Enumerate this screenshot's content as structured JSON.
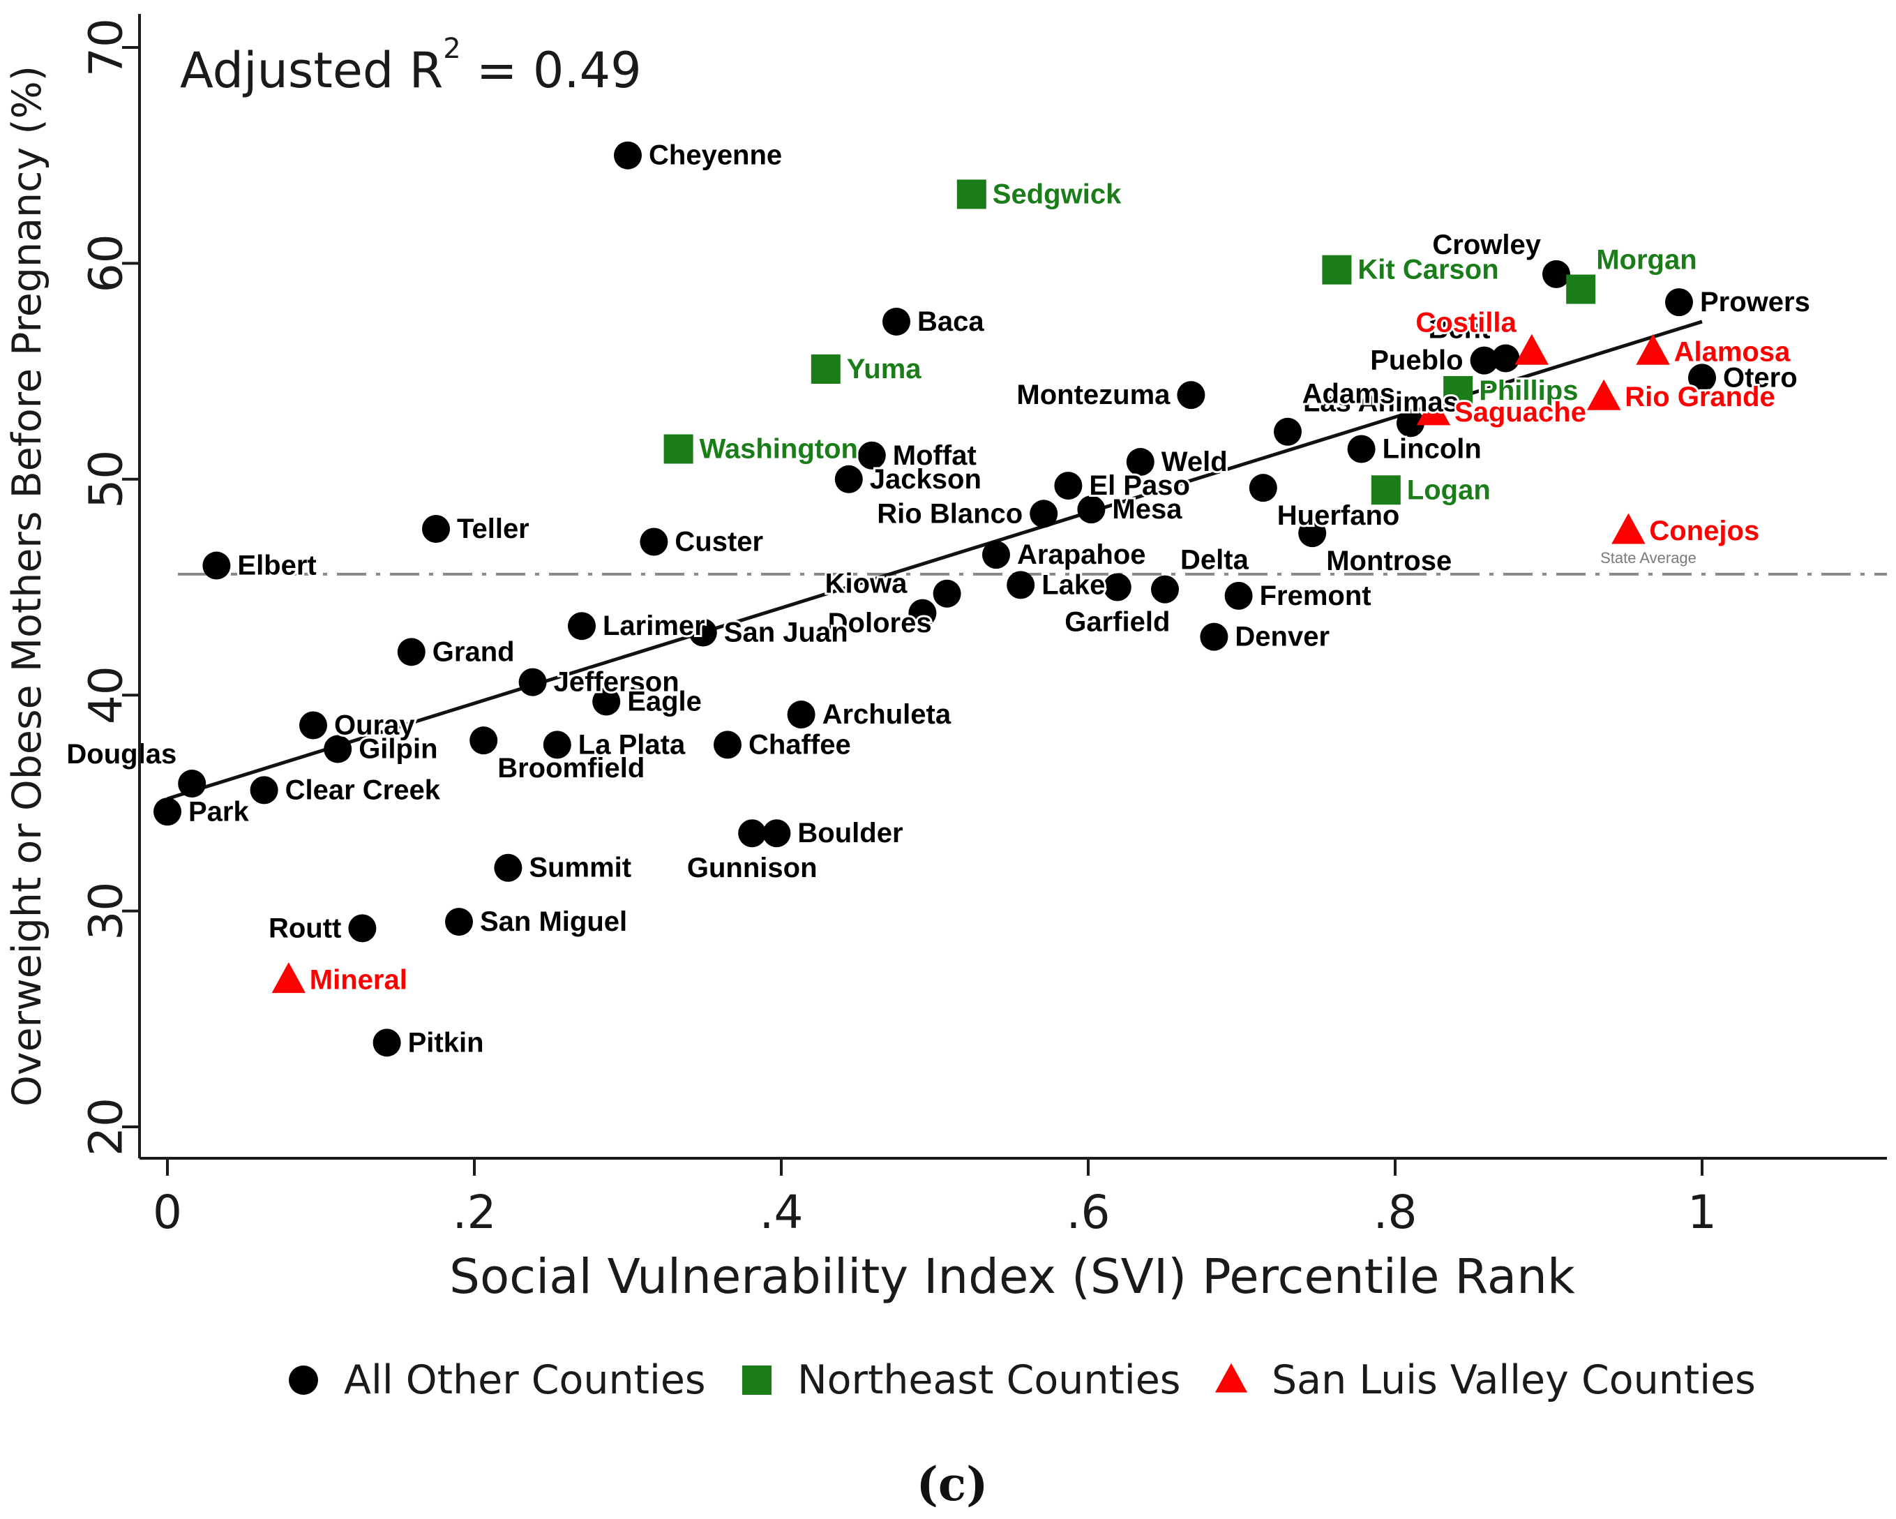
{
  "chart_data": {
    "type": "scatter",
    "annotation": {
      "prefix": "Adjusted R",
      "superscript": "2",
      "suffix": " = 0.49"
    },
    "xlabel": "Social Vulnerability Index (SVI) Percentile Rank",
    "ylabel": "Overweight or Obese Mothers Before Pregnancy (%)",
    "xlim": [
      -0.02,
      1.12
    ],
    "ylim": [
      18.5,
      71
    ],
    "x_ticks": [
      {
        "v": 0,
        "label": "0"
      },
      {
        "v": 0.2,
        "label": ".2"
      },
      {
        "v": 0.4,
        "label": ".4"
      },
      {
        "v": 0.6,
        "label": ".6"
      },
      {
        "v": 0.8,
        "label": ".8"
      },
      {
        "v": 1,
        "label": "1"
      }
    ],
    "y_ticks": [
      {
        "v": 20,
        "label": "20"
      },
      {
        "v": 30,
        "label": "30"
      },
      {
        "v": 40,
        "label": "40"
      },
      {
        "v": 50,
        "label": "50"
      },
      {
        "v": 60,
        "label": "60"
      },
      {
        "v": 70,
        "label": "70"
      }
    ],
    "state_average": {
      "value": 45.6,
      "label": "State Average"
    },
    "fit_line": {
      "x": [
        0,
        1
      ],
      "y": [
        35.2,
        57.3
      ]
    },
    "colors": {
      "other": "#000000",
      "northeast": "#1a7d1a",
      "slv": "#ff0000",
      "average_line": "#888888",
      "axis": "#1a1a1a"
    },
    "legend": [
      {
        "group": "other",
        "label": "All Other Counties",
        "marker": "circle"
      },
      {
        "group": "northeast",
        "label": "Northeast Counties",
        "marker": "square"
      },
      {
        "group": "slv",
        "label": "San Luis Valley Counties",
        "marker": "triangle"
      }
    ],
    "series": [
      {
        "name": "All Other Counties",
        "group": "other",
        "marker": "circle",
        "points": [
          {
            "label": "Cheyenne",
            "x": 0.3,
            "y": 65.0,
            "pos": "right"
          },
          {
            "label": "Baca",
            "x": 0.475,
            "y": 57.3,
            "pos": "right"
          },
          {
            "label": "Crowley",
            "x": 0.905,
            "y": 59.5,
            "pos": "upleft"
          },
          {
            "label": "Prowers",
            "x": 0.985,
            "y": 58.2,
            "pos": "right"
          },
          {
            "label": "Bent",
            "x": 0.872,
            "y": 55.6,
            "pos": "upleft"
          },
          {
            "label": "Pueblo",
            "x": 0.858,
            "y": 55.5,
            "pos": "left"
          },
          {
            "label": "Otero",
            "x": 1.0,
            "y": 54.7,
            "pos": "right"
          },
          {
            "label": "Montezuma",
            "x": 0.667,
            "y": 53.9,
            "pos": "left"
          },
          {
            "label": "Las Animas",
            "x": 0.73,
            "y": 52.2,
            "pos": "upright"
          },
          {
            "label": "Adams",
            "x": 0.81,
            "y": 52.6,
            "pos": "upleft"
          },
          {
            "label": "Lincoln",
            "x": 0.778,
            "y": 51.4,
            "pos": "right"
          },
          {
            "label": "Moffat",
            "x": 0.459,
            "y": 51.1,
            "pos": "right"
          },
          {
            "label": "Weld",
            "x": 0.634,
            "y": 50.8,
            "pos": "right"
          },
          {
            "label": "Jackson",
            "x": 0.444,
            "y": 50.0,
            "pos": "right"
          },
          {
            "label": "El Paso",
            "x": 0.587,
            "y": 49.7,
            "pos": "right"
          },
          {
            "label": "Huerfano",
            "x": 0.714,
            "y": 49.6,
            "pos": "downright"
          },
          {
            "label": "Mesa",
            "x": 0.602,
            "y": 48.6,
            "pos": "right"
          },
          {
            "label": "Rio Blanco",
            "x": 0.571,
            "y": 48.4,
            "pos": "left"
          },
          {
            "label": "Teller",
            "x": 0.175,
            "y": 47.7,
            "pos": "right"
          },
          {
            "label": "Montrose",
            "x": 0.746,
            "y": 47.5,
            "pos": "downright"
          },
          {
            "label": "Custer",
            "x": 0.317,
            "y": 47.1,
            "pos": "right"
          },
          {
            "label": "Arapahoe",
            "x": 0.54,
            "y": 46.5,
            "pos": "right"
          },
          {
            "label": "Elbert",
            "x": 0.032,
            "y": 46.0,
            "pos": "right"
          },
          {
            "label": "Kiowa",
            "x": 0.492,
            "y": 43.8,
            "pos": "upleft"
          },
          {
            "label": "Dolores",
            "x": 0.508,
            "y": 44.7,
            "pos": "downleft"
          },
          {
            "label": "Lake",
            "x": 0.556,
            "y": 45.1,
            "pos": "right"
          },
          {
            "label": "Garfield",
            "x": 0.619,
            "y": 45.0,
            "pos": "down"
          },
          {
            "label": "Delta",
            "x": 0.65,
            "y": 44.9,
            "pos": "upright"
          },
          {
            "label": "Fremont",
            "x": 0.698,
            "y": 44.6,
            "pos": "right"
          },
          {
            "label": "Denver",
            "x": 0.682,
            "y": 42.7,
            "pos": "right"
          },
          {
            "label": "Larimer",
            "x": 0.27,
            "y": 43.2,
            "pos": "right"
          },
          {
            "label": "San Juan",
            "x": 0.349,
            "y": 42.9,
            "pos": "right"
          },
          {
            "label": "Grand",
            "x": 0.159,
            "y": 42.0,
            "pos": "right"
          },
          {
            "label": "Jefferson",
            "x": 0.238,
            "y": 40.6,
            "pos": "right"
          },
          {
            "label": "Eagle",
            "x": 0.286,
            "y": 39.7,
            "pos": "right"
          },
          {
            "label": "Archuleta",
            "x": 0.413,
            "y": 39.1,
            "pos": "right"
          },
          {
            "label": "Ouray",
            "x": 0.095,
            "y": 38.6,
            "pos": "right"
          },
          {
            "label": "Gilpin",
            "x": 0.111,
            "y": 37.5,
            "pos": "right"
          },
          {
            "label": "Broomfield",
            "x": 0.206,
            "y": 37.9,
            "pos": "downright"
          },
          {
            "label": "La Plata",
            "x": 0.254,
            "y": 37.7,
            "pos": "right"
          },
          {
            "label": "Chaffee",
            "x": 0.365,
            "y": 37.7,
            "pos": "right"
          },
          {
            "label": "Douglas",
            "x": 0.016,
            "y": 35.9,
            "pos": "upleft"
          },
          {
            "label": "Clear Creek",
            "x": 0.063,
            "y": 35.6,
            "pos": "right"
          },
          {
            "label": "Park",
            "x": 0.0,
            "y": 34.6,
            "pos": "right"
          },
          {
            "label": "Gunnison",
            "x": 0.381,
            "y": 33.6,
            "pos": "down"
          },
          {
            "label": "Boulder",
            "x": 0.397,
            "y": 33.6,
            "pos": "right"
          },
          {
            "label": "Summit",
            "x": 0.222,
            "y": 32.0,
            "pos": "right"
          },
          {
            "label": "San Miguel",
            "x": 0.19,
            "y": 29.5,
            "pos": "right"
          },
          {
            "label": "Routt",
            "x": 0.127,
            "y": 29.2,
            "pos": "left"
          },
          {
            "label": "Pitkin",
            "x": 0.143,
            "y": 23.9,
            "pos": "right"
          }
        ]
      },
      {
        "name": "Northeast Counties",
        "group": "northeast",
        "marker": "square",
        "points": [
          {
            "label": "Sedgwick",
            "x": 0.524,
            "y": 63.2,
            "pos": "right"
          },
          {
            "label": "Kit Carson",
            "x": 0.762,
            "y": 59.7,
            "pos": "right"
          },
          {
            "label": "Morgan",
            "x": 0.921,
            "y": 58.8,
            "pos": "upright"
          },
          {
            "label": "Yuma",
            "x": 0.429,
            "y": 55.1,
            "pos": "right"
          },
          {
            "label": "Phillips",
            "x": 0.841,
            "y": 54.1,
            "pos": "right"
          },
          {
            "label": "Washington",
            "x": 0.333,
            "y": 51.4,
            "pos": "right"
          },
          {
            "label": "Logan",
            "x": 0.794,
            "y": 49.5,
            "pos": "right"
          }
        ]
      },
      {
        "name": "San Luis Valley Counties",
        "group": "slv",
        "marker": "triangle",
        "points": [
          {
            "label": "Costilla",
            "x": 0.889,
            "y": 55.9,
            "pos": "upleft"
          },
          {
            "label": "Alamosa",
            "x": 0.968,
            "y": 55.9,
            "pos": "right"
          },
          {
            "label": "Rio Grande",
            "x": 0.936,
            "y": 53.8,
            "pos": "right"
          },
          {
            "label": "Saguache",
            "x": 0.825,
            "y": 53.1,
            "pos": "right"
          },
          {
            "label": "Conejos",
            "x": 0.952,
            "y": 47.6,
            "pos": "right"
          },
          {
            "label": "Mineral",
            "x": 0.079,
            "y": 26.8,
            "pos": "right"
          }
        ]
      }
    ]
  },
  "caption": "(c)"
}
